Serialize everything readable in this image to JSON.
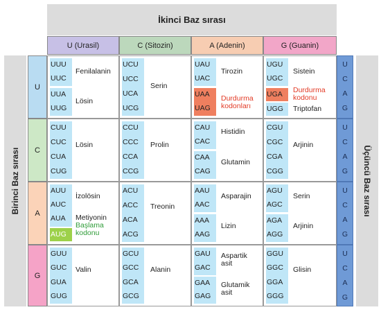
{
  "title_second": "İkinci Baz sırası",
  "title_first": "Birinci Baz sırası",
  "title_third": "Üçüncü Baz sırası",
  "columns": [
    "U (Urasil)",
    "C (Sitozin)",
    "A (Adenin)",
    "G (Guanin)"
  ],
  "rows": [
    "U",
    "C",
    "A",
    "G"
  ],
  "third_letters": [
    "U",
    "C",
    "A",
    "G"
  ],
  "colors": {
    "col_U": "#c7c0e6",
    "col_C": "#bcd8bc",
    "col_A": "#f7cdb2",
    "col_G": "#f2a6c8",
    "row_U": "#b9dcf2",
    "row_C": "#cde8c6",
    "row_A": "#fbd3b8",
    "row_G": "#f5a3c7",
    "codon_bg": "#bfe6f7",
    "stop_bg": "#ef7f5f",
    "start_bg": "#9dd14a",
    "stop_text": "#e23a25",
    "start_text": "#2f9c38",
    "third_col": "#6f9ad6"
  },
  "cells": {
    "UU": {
      "codons": [
        "UUU",
        "UUC",
        "UUA",
        "UUG"
      ],
      "labels": [
        "Fenilalanin",
        "Lösin"
      ]
    },
    "UC": {
      "codons": [
        "UCU",
        "UCC",
        "UCA",
        "UCG"
      ],
      "labels": [
        "Serin"
      ]
    },
    "UA": {
      "codons": [
        "UAU",
        "UAC",
        "UAA",
        "UAG"
      ],
      "labels": [
        "Tirozin",
        "Durdurma kodonları"
      ]
    },
    "UG": {
      "codons": [
        "UGU",
        "UGC",
        "UGA",
        "UGG"
      ],
      "labels": [
        "Sistein",
        "Durdurma kodonu",
        "Triptofan"
      ]
    },
    "CU": {
      "codons": [
        "CUU",
        "CUC",
        "CUA",
        "CUG"
      ],
      "labels": [
        "Lösin"
      ]
    },
    "CC": {
      "codons": [
        "CCU",
        "CCC",
        "CCA",
        "CCG"
      ],
      "labels": [
        "Prolin"
      ]
    },
    "CA": {
      "codons": [
        "CAU",
        "CAC",
        "CAA",
        "CAG"
      ],
      "labels": [
        "Histidin",
        "Glutamin"
      ]
    },
    "CG": {
      "codons": [
        "CGU",
        "CGC",
        "CGA",
        "CGG"
      ],
      "labels": [
        "Arjinin"
      ]
    },
    "AU": {
      "codons": [
        "AUU",
        "AUC",
        "AUA",
        "AUG"
      ],
      "labels": [
        "İzolösin",
        "Metiyonin",
        "Başlama kodonu"
      ]
    },
    "AC": {
      "codons": [
        "ACU",
        "ACC",
        "ACA",
        "ACG"
      ],
      "labels": [
        "Treonin"
      ]
    },
    "AA": {
      "codons": [
        "AAU",
        "AAC",
        "AAA",
        "AAG"
      ],
      "labels": [
        "Asparajin",
        "Lizin"
      ]
    },
    "AG": {
      "codons": [
        "AGU",
        "AGC",
        "AGA",
        "AGG"
      ],
      "labels": [
        "Serin",
        "Arjinin"
      ]
    },
    "GU": {
      "codons": [
        "GUU",
        "GUC",
        "GUA",
        "GUG"
      ],
      "labels": [
        "Valin"
      ]
    },
    "GC": {
      "codons": [
        "GCU",
        "GCC",
        "GCA",
        "GCG"
      ],
      "labels": [
        "Alanin"
      ]
    },
    "GA": {
      "codons": [
        "GAU",
        "GAC",
        "GAA",
        "GAG"
      ],
      "labels": [
        "Aspartik asit",
        "Glutamik asit"
      ]
    },
    "GG": {
      "codons": [
        "GGU",
        "GGC",
        "GGA",
        "GGG"
      ],
      "labels": [
        "Glisin"
      ]
    }
  }
}
